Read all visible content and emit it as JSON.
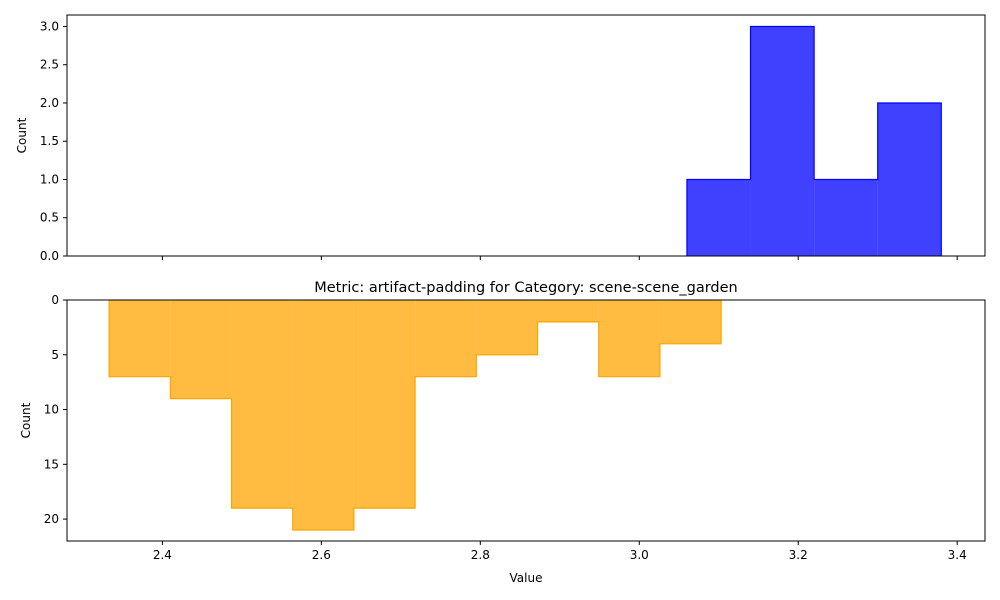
{
  "chart_data": [
    {
      "type": "bar",
      "title": "",
      "xlabel": "",
      "ylabel": "Count",
      "xlim": [
        2.28,
        3.435
      ],
      "ylim": [
        0,
        3.15
      ],
      "inverted_y": false,
      "color": "#0000ff",
      "bin_edges": [
        3.06,
        3.14,
        3.22,
        3.3,
        3.38
      ],
      "values": [
        1,
        3,
        1,
        2
      ],
      "x_ticks": [
        2.4,
        2.6,
        2.8,
        3.0,
        3.2,
        3.4
      ],
      "x_tick_labels_visible": false,
      "y_ticks": [
        0.0,
        0.5,
        1.0,
        1.5,
        2.0,
        2.5,
        3.0
      ],
      "y_tick_labels": [
        "0.0",
        "0.5",
        "1.0",
        "1.5",
        "2.0",
        "2.5",
        "3.0"
      ]
    },
    {
      "type": "bar",
      "title": "Metric: artifact-padding for Category: scene-scene_garden",
      "xlabel": "Value",
      "ylabel": "Count",
      "xlim": [
        2.28,
        3.435
      ],
      "ylim": [
        0,
        22
      ],
      "inverted_y": true,
      "color": "#ffa500",
      "bin_edges": [
        2.333,
        2.41,
        2.487,
        2.564,
        2.641,
        2.718,
        2.795,
        2.872,
        2.949,
        3.026,
        3.103
      ],
      "values": [
        7,
        9,
        19,
        21,
        19,
        7,
        5,
        2,
        7,
        4
      ],
      "x_ticks": [
        2.4,
        2.6,
        2.8,
        3.0,
        3.2,
        3.4
      ],
      "x_tick_labels": [
        "2.4",
        "2.6",
        "2.8",
        "3.0",
        "3.2",
        "3.4"
      ],
      "x_tick_labels_visible": true,
      "y_ticks": [
        0,
        5,
        10,
        15,
        20
      ],
      "y_tick_labels": [
        "0",
        "5",
        "10",
        "15",
        "20"
      ]
    }
  ]
}
